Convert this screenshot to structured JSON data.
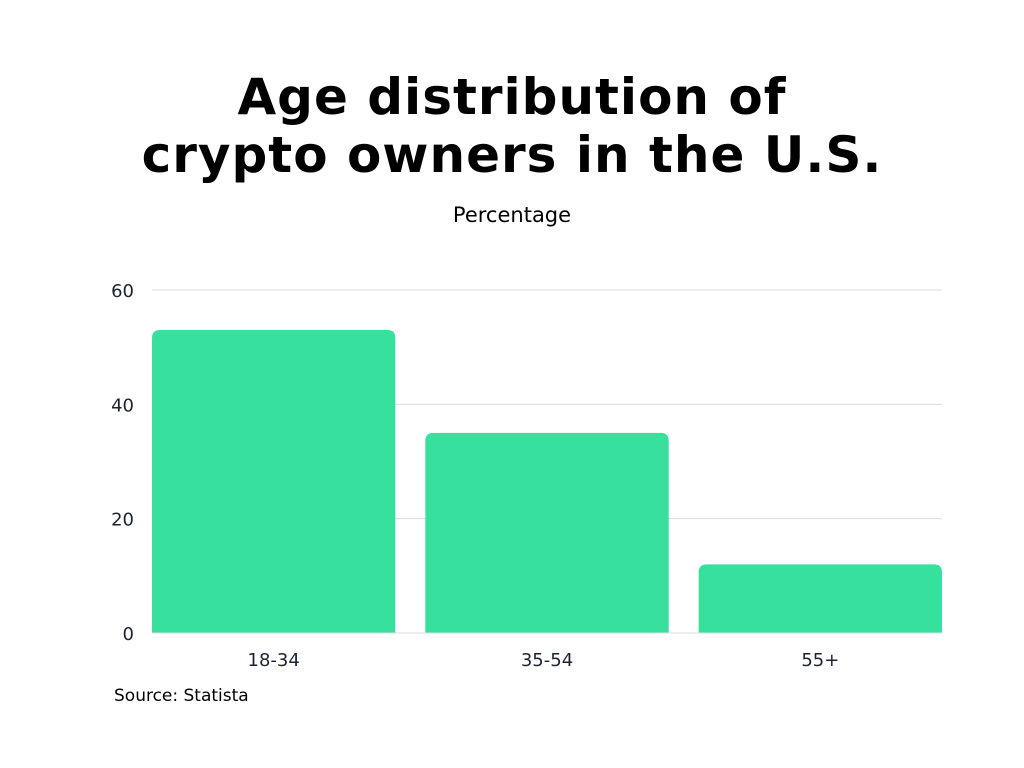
{
  "chart_data": {
    "type": "bar",
    "title": "Age distribution of crypto owners in the U.S.",
    "title_lines": [
      "Age distribution of",
      "crypto owners in the U.S."
    ],
    "subtitle": "Percentage",
    "categories": [
      "18-34",
      "35-54",
      "55+"
    ],
    "values": [
      53,
      35,
      12
    ],
    "ylim": [
      0,
      60
    ],
    "yticks": [
      0,
      20,
      40,
      60
    ],
    "xlabel": "",
    "ylabel": "",
    "grid": true,
    "bar_color": "#38E09E",
    "source": "Source: Statista"
  }
}
